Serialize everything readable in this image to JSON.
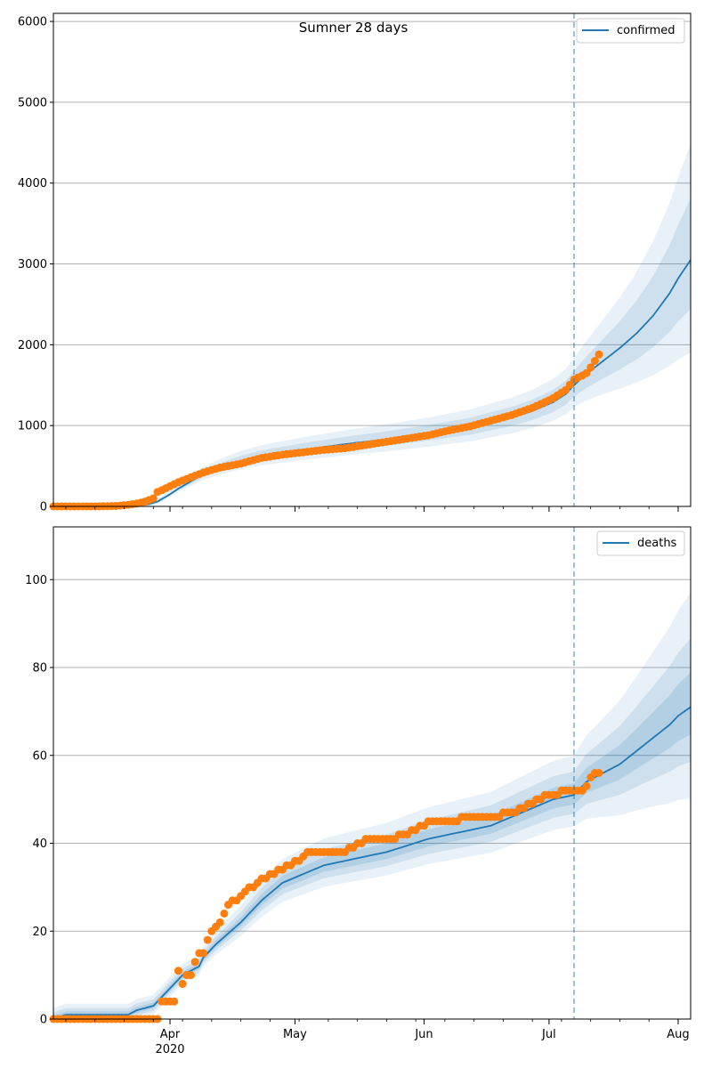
{
  "figure": {
    "title": "Sumner 28 days"
  },
  "chart_data": [
    {
      "type": "line",
      "name": "top",
      "legend": [
        "confirmed"
      ],
      "legend_position": "top-right",
      "grid": "horizontal",
      "ylim": [
        0,
        6100
      ],
      "yticks": [
        0,
        1000,
        2000,
        3000,
        4000,
        5000,
        6000
      ],
      "xlim_days": [
        0,
        153
      ],
      "forecast_start_day": 125,
      "fan_pct": [
        0.64,
        0.34
      ],
      "model_line": {
        "name": "confirmed",
        "x": [
          0,
          10,
          15,
          20,
          23,
          25,
          26,
          28,
          30,
          33,
          36,
          40,
          45,
          50,
          60,
          70,
          80,
          90,
          100,
          105,
          110,
          115,
          120,
          123,
          125,
          128,
          132,
          136,
          140,
          144,
          148,
          150,
          153
        ],
        "y": [
          0,
          0,
          2,
          10,
          30,
          60,
          90,
          150,
          220,
          310,
          400,
          480,
          560,
          620,
          700,
          770,
          830,
          900,
          980,
          1040,
          1100,
          1180,
          1290,
          1390,
          1500,
          1640,
          1800,
          1960,
          2140,
          2360,
          2640,
          2820,
          3050
        ]
      },
      "observed": {
        "start_day": 0,
        "end_day": 131,
        "x": [
          0,
          10,
          15,
          18,
          20,
          22,
          24,
          25,
          26,
          28,
          30,
          33,
          36,
          38,
          40,
          45,
          50,
          55,
          60,
          65,
          70,
          75,
          80,
          85,
          90,
          95,
          100,
          105,
          110,
          115,
          118,
          120,
          123,
          125,
          127,
          128,
          129,
          130,
          131
        ],
        "y": [
          0,
          0,
          5,
          20,
          35,
          60,
          100,
          180,
          200,
          250,
          300,
          360,
          420,
          450,
          480,
          530,
          600,
          640,
          670,
          700,
          720,
          760,
          800,
          840,
          880,
          940,
          990,
          1060,
          1130,
          1220,
          1290,
          1340,
          1440,
          1570,
          1620,
          1650,
          1720,
          1800,
          1880
        ]
      }
    },
    {
      "type": "line",
      "name": "bottom",
      "legend": [
        "deaths"
      ],
      "legend_position": "top-right",
      "grid": "horizontal",
      "ylim": [
        0,
        112
      ],
      "yticks": [
        0,
        20,
        40,
        60,
        80,
        100
      ],
      "xlim_days": [
        0,
        153
      ],
      "forecast_start_day": 125,
      "fan_pct": [
        0.5,
        0.3,
        0.15
      ],
      "model_line": {
        "name": "deaths",
        "x": [
          0,
          3,
          18,
          20,
          24,
          26,
          27,
          29,
          31,
          35,
          36,
          38,
          39,
          45,
          50,
          55,
          60,
          65,
          70,
          80,
          90,
          100,
          105,
          110,
          115,
          120,
          125,
          128,
          132,
          136,
          140,
          144,
          148,
          150,
          153
        ],
        "y": [
          0,
          1,
          1,
          2,
          3,
          5,
          6,
          8,
          10,
          12,
          14,
          16,
          17,
          22,
          27,
          31,
          33,
          35,
          36,
          38,
          41,
          43,
          44,
          46,
          48,
          50,
          51,
          54,
          56,
          58,
          61,
          64,
          67,
          69,
          71
        ]
      },
      "observed": {
        "start_day": 0,
        "end_day": 131,
        "x": [
          0,
          25,
          26,
          29,
          30,
          31,
          32,
          33,
          35,
          36,
          37,
          38,
          40,
          42,
          45,
          50,
          55,
          57,
          60,
          62,
          65,
          70,
          75,
          80,
          85,
          90,
          95,
          100,
          105,
          110,
          115,
          118,
          120,
          123,
          125,
          127,
          128,
          129,
          130,
          131
        ],
        "y": [
          0,
          0,
          4,
          4,
          11,
          8,
          10,
          10,
          15,
          15,
          18,
          20,
          22,
          26,
          28,
          32,
          34,
          35,
          37,
          38,
          38,
          38,
          41,
          41,
          42,
          45,
          45,
          46,
          46,
          47,
          49,
          51,
          51,
          52,
          52,
          52,
          53,
          55,
          56,
          56
        ]
      }
    }
  ],
  "x_axis": {
    "ticks": [
      {
        "label": "Apr",
        "day": 28
      },
      {
        "label": "May",
        "day": 58
      },
      {
        "label": "Jun",
        "day": 89
      },
      {
        "label": "Jul",
        "day": 119
      },
      {
        "label": "Aug",
        "day": 150
      }
    ],
    "year_label": "2020",
    "year_day": 28
  },
  "colors": {
    "model_line": "#1f77b4",
    "observed": "#ff7f0e",
    "band": "#1f77b4",
    "grid": "#b0b0b0",
    "forecast_line": "#1f77b4"
  }
}
